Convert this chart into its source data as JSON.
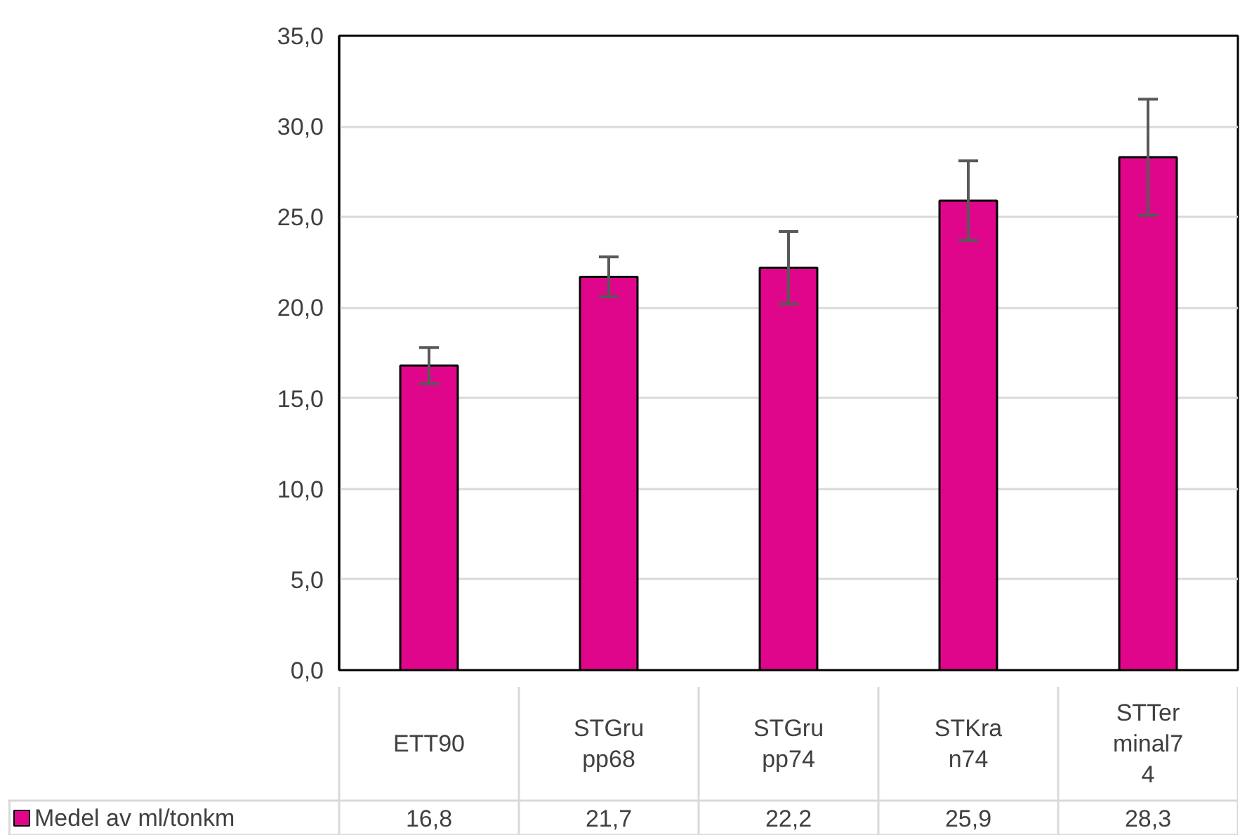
{
  "chart_data": {
    "type": "bar",
    "categories": [
      "ETT90",
      "STGrupp68",
      "STGrupp74",
      "STKran74",
      "STTerminal74"
    ],
    "series": [
      {
        "name": "Medel av ml/tonkm",
        "color": "#e0068b",
        "values": [
          16.8,
          21.7,
          22.2,
          25.9,
          28.3
        ],
        "errors": [
          1.0,
          1.1,
          2.0,
          2.2,
          3.2
        ],
        "value_labels": [
          "16,8",
          "21,7",
          "22,2",
          "25,9",
          "28,3"
        ]
      }
    ],
    "ylim": [
      0,
      35
    ],
    "yticks": [
      {
        "value": 0,
        "label": "0,0"
      },
      {
        "value": 5,
        "label": "5,0"
      },
      {
        "value": 10,
        "label": "10,0"
      },
      {
        "value": 15,
        "label": "15,0"
      },
      {
        "value": 20,
        "label": "20,0"
      },
      {
        "value": 25,
        "label": "25,0"
      },
      {
        "value": 30,
        "label": "30,0"
      },
      {
        "value": 35,
        "label": "35,0"
      }
    ],
    "grid": "y",
    "legend": "bottom"
  }
}
